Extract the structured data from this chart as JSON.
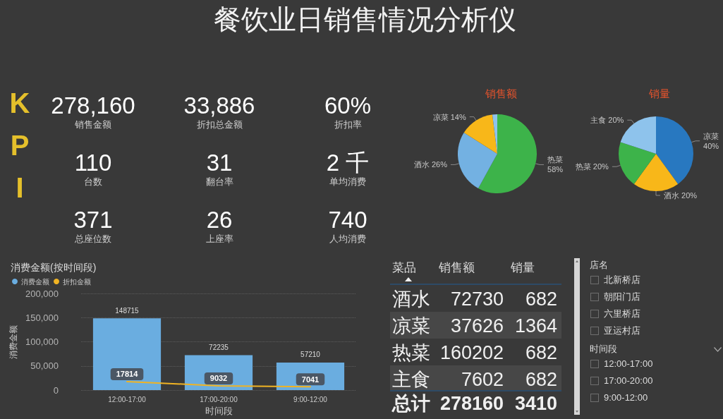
{
  "chart_data": [
    {
      "type": "other",
      "title": "餐饮业日销售情况分析仪",
      "subtitle": "KPI",
      "categories": [
        "销售金额",
        "折扣总金额",
        "折扣率",
        "台数",
        "翻台率",
        "单均消费",
        "总座位数",
        "上座率",
        "人均消费"
      ],
      "value_labels": [
        "278,160",
        "33,886",
        "60%",
        "110",
        "31",
        "2 千",
        "371",
        "26",
        "740"
      ]
    },
    {
      "type": "pie",
      "title": "销售额",
      "categories": [
        "热菜",
        "酒水",
        "凉菜",
        null
      ],
      "values": [
        58,
        26,
        14,
        2
      ],
      "value_labels": [
        "58%",
        "26%",
        "14%",
        null
      ],
      "colors": [
        "#3db34a",
        "#73b1e2",
        "#f8b719",
        "#8ec3ec"
      ]
    },
    {
      "type": "pie",
      "title": "销量",
      "categories": [
        "凉菜",
        "酒水",
        "热菜",
        "主食"
      ],
      "values": [
        40,
        20,
        20,
        20
      ],
      "value_labels": [
        "40%",
        "20%",
        "20%",
        "20%"
      ],
      "colors": [
        "#2878c0",
        "#f8b719",
        "#3db34a",
        "#8ec3ec"
      ]
    },
    {
      "type": "bar",
      "title": "消费金额(按时间段)",
      "xlabel": "时间段",
      "ylabel": "消费金额",
      "categories": [
        "12:00-17:00",
        "17:00-20:00",
        "9:00-12:00"
      ],
      "series": [
        {
          "name": "消费金额",
          "color": "#6aade0",
          "values": [
            148715,
            72235,
            57210
          ]
        },
        {
          "name": "折扣金额",
          "type": "line",
          "color": "#f0b323",
          "values": [
            17814,
            9032,
            7041
          ]
        }
      ],
      "ylim": [
        0,
        200000
      ],
      "yticks": [
        0,
        {
          "value": 50000,
          "label": "50,000"
        },
        {
          "value": 100000,
          "label": "100,000"
        },
        {
          "value": 150000,
          "label": "150,000"
        },
        {
          "value": 200000,
          "label": "200,000"
        }
      ],
      "grid": "y",
      "legend": "top left",
      "marker": "none",
      "data_labels": true
    },
    {
      "type": "other",
      "xlabel": "菜品",
      "categories": [
        "酒水",
        "凉菜",
        "热菜",
        "主食"
      ],
      "series": [
        {
          "name": "销售额",
          "values": [
            72730,
            37626,
            160202,
            7602
          ]
        },
        {
          "name": "销量",
          "values": [
            682,
            1364,
            682,
            682
          ]
        }
      ],
      "data_labels": true,
      "totals": [
        "278160",
        "3410"
      ],
      "annotations": [
        "总计"
      ]
    },
    {
      "type": "other",
      "title": "店名",
      "categories": [
        "北新桥店",
        "朝阳门店",
        "六里桥店",
        "亚运村店"
      ]
    },
    {
      "type": "other",
      "title": "时间段",
      "categories": [
        "12:00-17:00",
        "17:00-20:00",
        "9:00-12:00"
      ]
    }
  ]
}
